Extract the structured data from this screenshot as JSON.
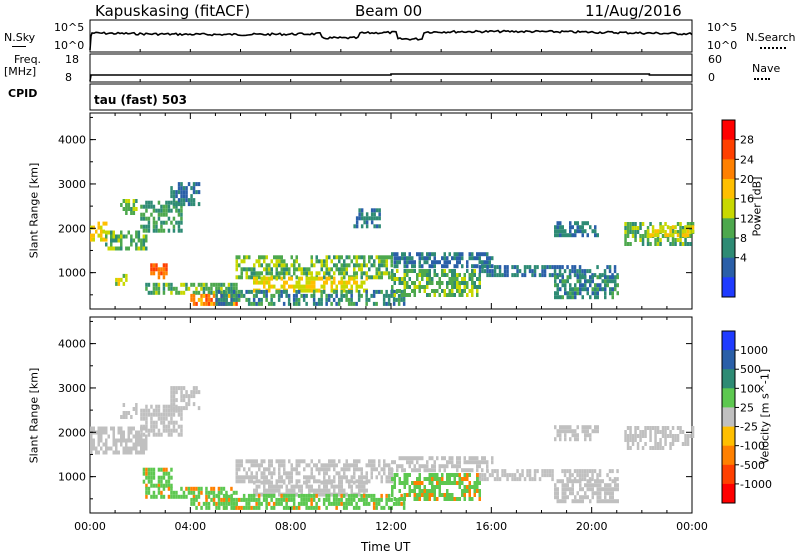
{
  "header": {
    "station": "Kapuskasing (fitACF)",
    "beam": "Beam 00",
    "date": "11/Aug/2016"
  },
  "noise_panel": {
    "left_label": "N.Sky",
    "right_label": "N.Search",
    "left_ticks": [
      "10^5",
      "10^0"
    ],
    "right_ticks": [
      "10^5",
      "10^0"
    ]
  },
  "freq_panel": {
    "left_label_top": "Freq.",
    "left_label_unit": "[MHz]",
    "left_ticks": [
      "18",
      "8"
    ],
    "right_label": "Nave",
    "right_ticks": [
      "60",
      "0"
    ],
    "cpid_label": "CPID"
  },
  "mode": {
    "text": "tau (fast) 503"
  },
  "colors": {
    "noise_line": "#000000",
    "power_low": "#1f3bff",
    "power_high": "#ff0000",
    "velocity_ground": "#c0c0c0"
  },
  "chart_data": [
    {
      "type": "heatmap",
      "name": "power",
      "ylabel": "Slant Range [km]",
      "yticks": [
        "4000",
        "3000",
        "2000",
        "1000"
      ],
      "ylim": [
        180,
        4600
      ],
      "xlabel": "Time UT",
      "xticks": [
        "00:00",
        "04:00",
        "08:00",
        "12:00",
        "16:00",
        "20:00",
        "00:00"
      ],
      "xlim_hours": [
        0,
        24
      ],
      "colorbar": {
        "label": "Power [dB]",
        "ticks": [
          "28",
          "24",
          "20",
          "16",
          "12",
          "8",
          "4"
        ],
        "colors": [
          "#ff0000",
          "#ff4000",
          "#ff8000",
          "#ffbf00",
          "#c8d800",
          "#4da84d",
          "#2e8b74",
          "#2a5fa8",
          "#1f3bff"
        ]
      },
      "regions": [
        {
          "t0": 0.0,
          "t1": 0.6,
          "r0": 1700,
          "r1": 2100,
          "level": 18
        },
        {
          "t0": 0.6,
          "t1": 2.2,
          "r0": 1500,
          "r1": 1900,
          "level": 12
        },
        {
          "t0": 2.0,
          "t1": 3.6,
          "r0": 1900,
          "r1": 2600,
          "level": 10
        },
        {
          "t0": 3.2,
          "t1": 4.3,
          "r0": 2500,
          "r1": 3000,
          "level": 6
        },
        {
          "t0": 1.2,
          "t1": 1.8,
          "r0": 2300,
          "r1": 2600,
          "level": 12
        },
        {
          "t0": 2.4,
          "t1": 3.0,
          "r0": 850,
          "r1": 1150,
          "level": 26
        },
        {
          "t0": 1.0,
          "t1": 1.4,
          "r0": 700,
          "r1": 900,
          "level": 16
        },
        {
          "t0": 2.2,
          "t1": 5.8,
          "r0": 500,
          "r1": 750,
          "level": 12
        },
        {
          "t0": 4.0,
          "t1": 5.8,
          "r0": 250,
          "r1": 500,
          "level": 24
        },
        {
          "t0": 5.8,
          "t1": 12.0,
          "r0": 850,
          "r1": 1350,
          "level": 12
        },
        {
          "t0": 6.5,
          "t1": 11.0,
          "r0": 550,
          "r1": 850,
          "level": 18
        },
        {
          "t0": 5.0,
          "t1": 12.5,
          "r0": 250,
          "r1": 550,
          "level": 8
        },
        {
          "t0": 12.0,
          "t1": 15.5,
          "r0": 450,
          "r1": 1000,
          "level": 12
        },
        {
          "t0": 12.0,
          "t1": 16.0,
          "r0": 1100,
          "r1": 1400,
          "level": 6
        },
        {
          "t0": 15.5,
          "t1": 21.0,
          "r0": 900,
          "r1": 1150,
          "level": 6
        },
        {
          "t0": 18.5,
          "t1": 21.0,
          "r0": 400,
          "r1": 900,
          "level": 8
        },
        {
          "t0": 10.5,
          "t1": 11.5,
          "r0": 2000,
          "r1": 2400,
          "level": 6
        },
        {
          "t0": 18.5,
          "t1": 20.2,
          "r0": 1800,
          "r1": 2100,
          "level": 6
        },
        {
          "t0": 21.3,
          "t1": 24.0,
          "r0": 1600,
          "r1": 2100,
          "level": 12
        },
        {
          "t0": 22.2,
          "t1": 24.0,
          "r0": 1800,
          "r1": 2000,
          "level": 18
        }
      ]
    },
    {
      "type": "heatmap",
      "name": "velocity",
      "ylabel": "Slant Range [km]",
      "yticks": [
        "4000",
        "3000",
        "2000",
        "1000"
      ],
      "ylim": [
        180,
        4600
      ],
      "xlabel": "Time UT",
      "xticks": [
        "00:00",
        "04:00",
        "08:00",
        "12:00",
        "16:00",
        "20:00",
        "00:00"
      ],
      "xlim_hours": [
        0,
        24
      ],
      "colorbar": {
        "label": "Velocity [m s^-1]",
        "ticks": [
          "1000",
          "500",
          "100",
          "25",
          "-25",
          "-100",
          "-500",
          "-1000"
        ],
        "colors": [
          "#1f3bff",
          "#2a5fa8",
          "#2e8b74",
          "#5dc850",
          "#c0c0c0",
          "#ffbf00",
          "#ff8000",
          "#ff4000",
          "#ff0000"
        ]
      },
      "regions": [
        {
          "t0": 0.0,
          "t1": 2.2,
          "r0": 1500,
          "r1": 2100,
          "level": 0
        },
        {
          "t0": 2.0,
          "t1": 3.6,
          "r0": 1900,
          "r1": 2600,
          "level": 0
        },
        {
          "t0": 3.2,
          "t1": 4.3,
          "r0": 2500,
          "r1": 3000,
          "level": 0
        },
        {
          "t0": 1.2,
          "t1": 1.8,
          "r0": 2300,
          "r1": 2600,
          "level": 0
        },
        {
          "t0": 2.0,
          "t1": 3.2,
          "r0": 750,
          "r1": 1200,
          "level": 60
        },
        {
          "t0": 2.2,
          "t1": 5.8,
          "r0": 500,
          "r1": 750,
          "level": 60
        },
        {
          "t0": 4.0,
          "t1": 5.8,
          "r0": 250,
          "r1": 500,
          "level": 60
        },
        {
          "t0": 5.8,
          "t1": 12.0,
          "r0": 850,
          "r1": 1350,
          "level": 0
        },
        {
          "t0": 6.5,
          "t1": 11.0,
          "r0": 550,
          "r1": 850,
          "level": 0
        },
        {
          "t0": 5.0,
          "t1": 12.5,
          "r0": 250,
          "r1": 550,
          "level": 60
        },
        {
          "t0": 12.0,
          "t1": 15.5,
          "r0": 450,
          "r1": 1000,
          "level": 60
        },
        {
          "t0": 12.0,
          "t1": 16.0,
          "r0": 1100,
          "r1": 1400,
          "level": 0
        },
        {
          "t0": 15.5,
          "t1": 21.0,
          "r0": 900,
          "r1": 1150,
          "level": 0
        },
        {
          "t0": 18.5,
          "t1": 21.0,
          "r0": 400,
          "r1": 900,
          "level": 0
        },
        {
          "t0": 18.5,
          "t1": 20.2,
          "r0": 1800,
          "r1": 2100,
          "level": 0
        },
        {
          "t0": 21.3,
          "t1": 24.0,
          "r0": 1600,
          "r1": 2100,
          "level": 0
        }
      ]
    }
  ]
}
